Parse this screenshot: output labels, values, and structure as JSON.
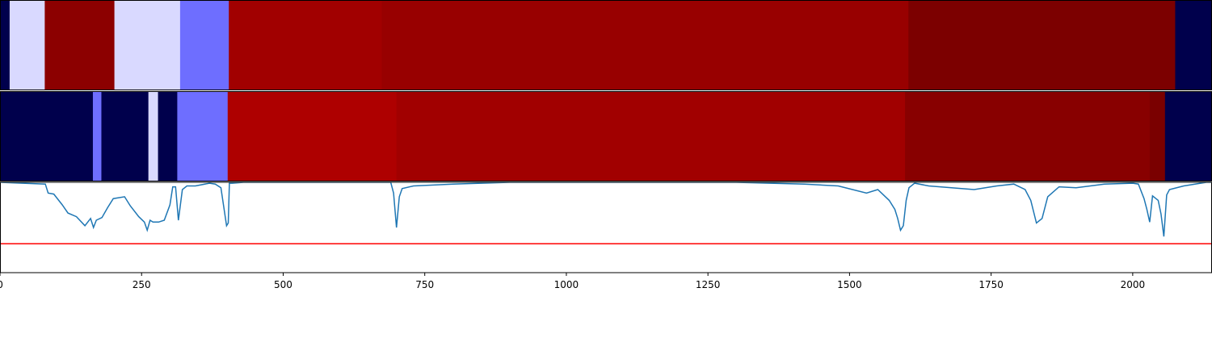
{
  "chart_data": {
    "type": "heatmap",
    "title": "",
    "xlabel": "",
    "ylabel": "",
    "xlim": [
      0,
      2140
    ],
    "x_ticks": [
      0,
      250,
      500,
      750,
      1000,
      1250,
      1500,
      1750,
      2000
    ],
    "x_tick_labels": [
      "0",
      "250",
      "500",
      "750",
      "1000",
      "1250",
      "1500",
      "1750",
      "2000"
    ],
    "rows": [
      {
        "segments": [
          {
            "start": 0,
            "end": 17,
            "color": "#00004c"
          },
          {
            "start": 17,
            "end": 79,
            "color": "#d9d9ff"
          },
          {
            "start": 79,
            "end": 202,
            "color": "#8c0000"
          },
          {
            "start": 202,
            "end": 318,
            "color": "#d9d9ff"
          },
          {
            "start": 318,
            "end": 404,
            "color": "#6e6eff"
          },
          {
            "start": 404,
            "end": 674,
            "color": "#a10000"
          },
          {
            "start": 674,
            "end": 1604,
            "color": "#980000"
          },
          {
            "start": 1604,
            "end": 2075,
            "color": "#7c0000"
          },
          {
            "start": 2075,
            "end": 2140,
            "color": "#00004c"
          }
        ]
      },
      {
        "segments": [
          {
            "start": 0,
            "end": 164,
            "color": "#00004c"
          },
          {
            "start": 164,
            "end": 179,
            "color": "#6e6eff"
          },
          {
            "start": 179,
            "end": 262,
            "color": "#00004c"
          },
          {
            "start": 262,
            "end": 279,
            "color": "#d9d9ff"
          },
          {
            "start": 279,
            "end": 313,
            "color": "#00004c"
          },
          {
            "start": 313,
            "end": 402,
            "color": "#6e6eff"
          },
          {
            "start": 402,
            "end": 700,
            "color": "#ae0000"
          },
          {
            "start": 700,
            "end": 1598,
            "color": "#a10000"
          },
          {
            "start": 1598,
            "end": 2030,
            "color": "#880000"
          },
          {
            "start": 2030,
            "end": 2057,
            "color": "#7a0000"
          },
          {
            "start": 2057,
            "end": 2140,
            "color": "#00004c"
          }
        ]
      }
    ],
    "line_panel": {
      "ylim": [
        0,
        1
      ],
      "threshold": 0.32,
      "threshold_color": "#ff0000",
      "line_color": "#1f77b4",
      "x": [
        0,
        80,
        85,
        95,
        110,
        120,
        135,
        150,
        160,
        165,
        170,
        180,
        190,
        200,
        220,
        230,
        245,
        255,
        260,
        265,
        270,
        280,
        290,
        300,
        305,
        310,
        315,
        322,
        330,
        345,
        370,
        380,
        390,
        400,
        403,
        405,
        410,
        430,
        500,
        600,
        690,
        695,
        700,
        705,
        710,
        730,
        800,
        900,
        1000,
        1200,
        1300,
        1420,
        1480,
        1530,
        1550,
        1570,
        1580,
        1585,
        1590,
        1595,
        1600,
        1605,
        1615,
        1640,
        1680,
        1720,
        1760,
        1790,
        1810,
        1820,
        1830,
        1840,
        1850,
        1870,
        1900,
        1950,
        2000,
        2010,
        2020,
        2025,
        2030,
        2035,
        2045,
        2050,
        2055,
        2060,
        2065,
        2090,
        2110,
        2130,
        2140
      ],
      "y": [
        1.0,
        0.98,
        0.88,
        0.87,
        0.75,
        0.66,
        0.62,
        0.52,
        0.6,
        0.5,
        0.58,
        0.61,
        0.72,
        0.82,
        0.84,
        0.74,
        0.62,
        0.56,
        0.47,
        0.58,
        0.56,
        0.56,
        0.58,
        0.75,
        0.95,
        0.95,
        0.58,
        0.92,
        0.96,
        0.96,
        0.99,
        0.98,
        0.94,
        0.52,
        0.55,
        0.99,
        0.99,
        1.0,
        1.0,
        1.0,
        1.0,
        0.88,
        0.5,
        0.84,
        0.93,
        0.96,
        0.98,
        1.0,
        1.0,
        1.0,
        1.0,
        0.98,
        0.96,
        0.88,
        0.92,
        0.8,
        0.7,
        0.6,
        0.47,
        0.52,
        0.8,
        0.94,
        0.99,
        0.96,
        0.94,
        0.92,
        0.96,
        0.98,
        0.92,
        0.8,
        0.55,
        0.6,
        0.84,
        0.95,
        0.94,
        0.98,
        0.99,
        0.98,
        0.82,
        0.7,
        0.56,
        0.85,
        0.8,
        0.65,
        0.4,
        0.86,
        0.92,
        0.96,
        0.98,
        1.0,
        1.0
      ]
    }
  }
}
